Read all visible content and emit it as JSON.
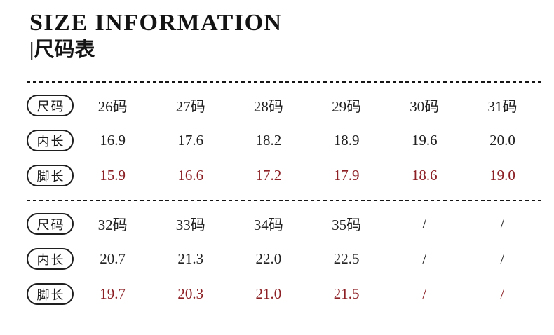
{
  "header": {
    "title": "SIZE INFORMATION",
    "subtitle": "|尺码表"
  },
  "colors": {
    "text_black": "#1b1b1b",
    "foot_length_red": "#8c2025"
  },
  "tables": [
    {
      "rows": [
        {
          "label": "尺码",
          "values": [
            "26码",
            "27码",
            "28码",
            "29码",
            "30码",
            "31码"
          ],
          "highlight": "none"
        },
        {
          "label": "内长",
          "values": [
            "16.9",
            "17.6",
            "18.2",
            "18.9",
            "19.6",
            "20.0"
          ],
          "highlight": "none"
        },
        {
          "label": "脚长",
          "values": [
            "15.9",
            "16.6",
            "17.2",
            "17.9",
            "18.6",
            "19.0"
          ],
          "highlight": "red"
        }
      ]
    },
    {
      "rows": [
        {
          "label": "尺码",
          "values": [
            "32码",
            "33码",
            "34码",
            "35码",
            "/",
            "/"
          ],
          "highlight": "none"
        },
        {
          "label": "内长",
          "values": [
            "20.7",
            "21.3",
            "22.0",
            "22.5",
            "/",
            "/"
          ],
          "highlight": "none"
        },
        {
          "label": "脚长",
          "values": [
            "19.7",
            "20.3",
            "21.0",
            "21.5",
            "/",
            "/"
          ],
          "highlight": "red"
        }
      ]
    }
  ]
}
